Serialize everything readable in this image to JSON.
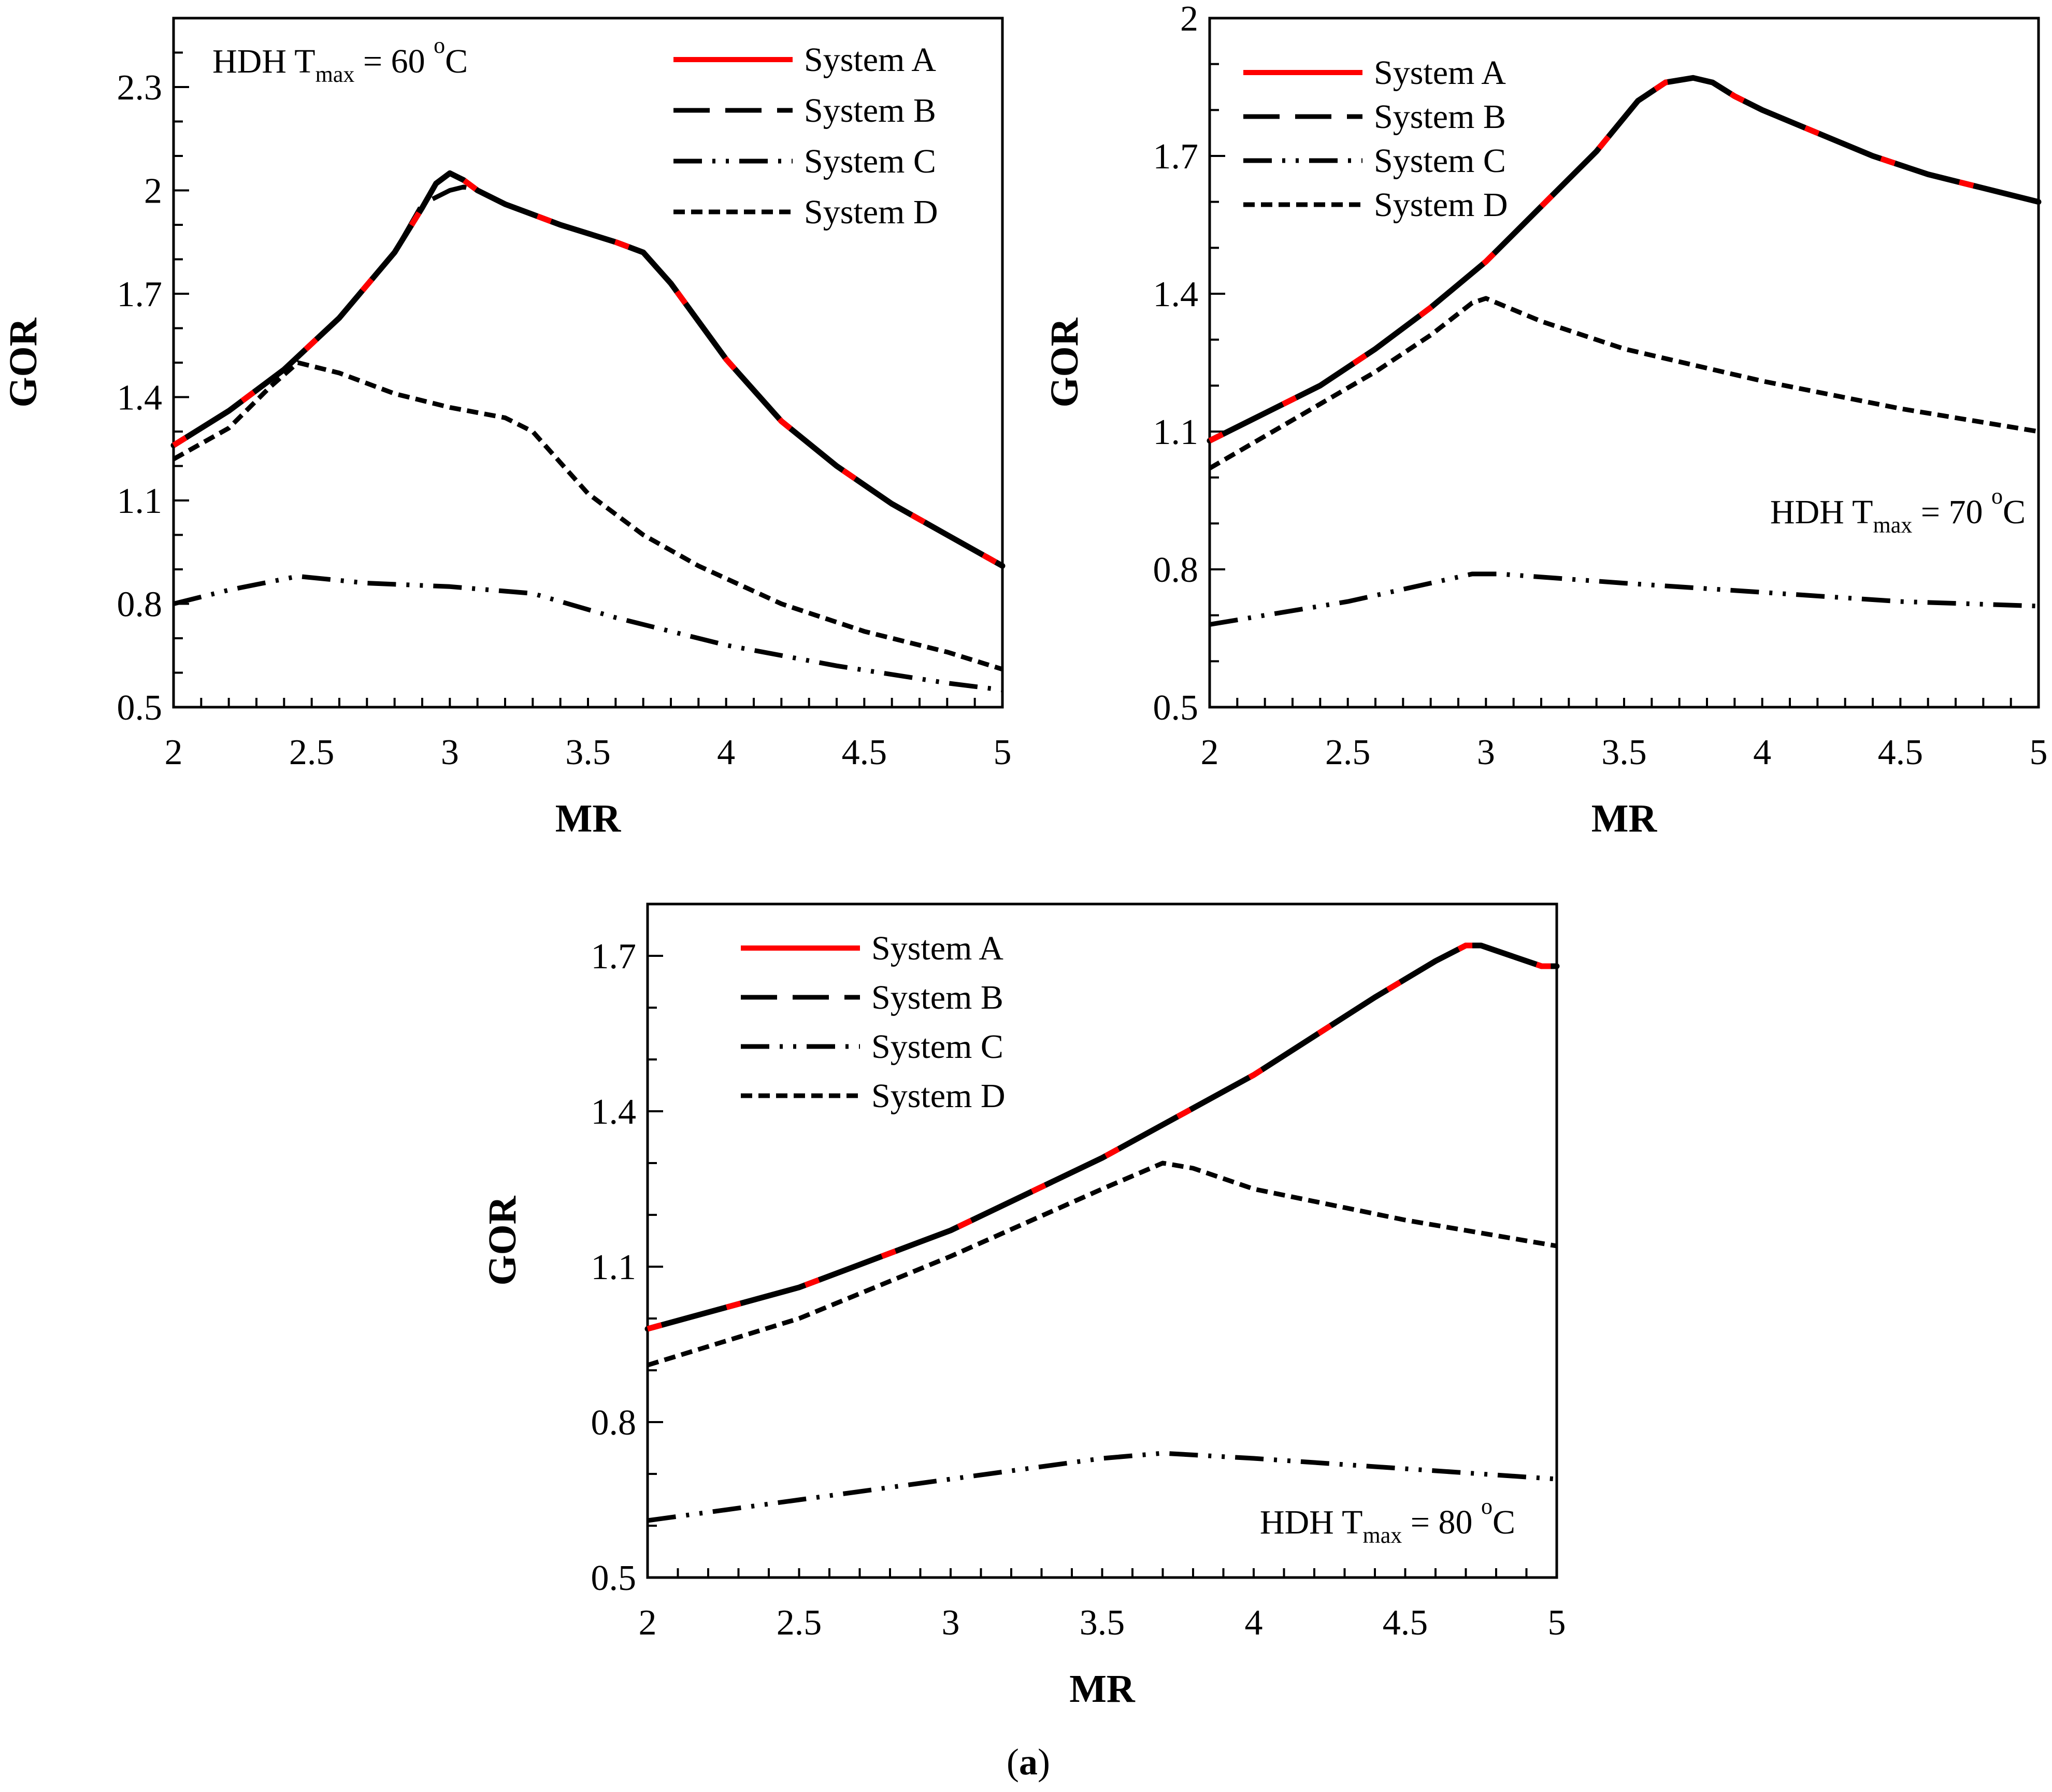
{
  "figure_caption": {
    "open": "(",
    "letter": "a",
    "close": ")"
  },
  "colors": {
    "system_a": "#ff0000",
    "other_series": "#000000",
    "axis": "#000000"
  },
  "chart_data": [
    {
      "type": "line",
      "xlabel": "MR",
      "ylabel": "GOR",
      "xlim": [
        2,
        5
      ],
      "ylim": [
        0.5,
        2.5
      ],
      "xticks": [
        2,
        2.5,
        3,
        3.5,
        4,
        4.5,
        5
      ],
      "xtick_labels": [
        "2",
        "2.5",
        "3",
        "3.5",
        "4",
        "4.5",
        "5"
      ],
      "yticks": [
        0.5,
        0.8,
        1.1,
        1.4,
        1.7,
        2,
        2.3
      ],
      "ytick_labels": [
        "0.5",
        "0.8",
        "1.1",
        "1.4",
        "1.7",
        "2",
        "2.3"
      ],
      "annotation": {
        "pre": "HDH T",
        "sub": "max",
        "mid": " = 60 ",
        "sup": "o",
        "post": "C"
      },
      "annotation_position": "top-left",
      "legend_position": "top-right",
      "series": [
        {
          "name": "System A",
          "style": "solid-red-over-black",
          "x": [
            2,
            2.2,
            2.4,
            2.6,
            2.8,
            2.9,
            2.95,
            3,
            3.05,
            3.1,
            3.2,
            3.4,
            3.6,
            3.7,
            3.8,
            3.9,
            4,
            4.2,
            4.4,
            4.6,
            4.8,
            5
          ],
          "y": [
            1.26,
            1.36,
            1.48,
            1.63,
            1.82,
            1.95,
            2.02,
            2.05,
            2.03,
            2.0,
            1.96,
            1.9,
            1.85,
            1.82,
            1.73,
            1.62,
            1.51,
            1.33,
            1.2,
            1.09,
            1.0,
            0.91
          ]
        },
        {
          "name": "System B",
          "style": "long-dash",
          "x": [
            2,
            2.2,
            2.4,
            2.6,
            2.8,
            2.9,
            3,
            3.05,
            3.1,
            3.2,
            3.4,
            3.6,
            3.7,
            3.8,
            3.9,
            4,
            4.2,
            4.4,
            4.6,
            4.8,
            5
          ],
          "y": [
            1.26,
            1.36,
            1.48,
            1.63,
            1.82,
            1.96,
            2.0,
            2.01,
            2.0,
            1.96,
            1.9,
            1.85,
            1.82,
            1.73,
            1.62,
            1.51,
            1.33,
            1.2,
            1.09,
            1.0,
            0.91
          ]
        },
        {
          "name": "System C",
          "style": "dash-dot-dot",
          "x": [
            2,
            2.2,
            2.45,
            2.7,
            3,
            3.3,
            3.6,
            4,
            4.4,
            4.8,
            5
          ],
          "y": [
            0.8,
            0.84,
            0.88,
            0.86,
            0.85,
            0.83,
            0.76,
            0.68,
            0.62,
            0.57,
            0.55
          ]
        },
        {
          "name": "System D",
          "style": "short-dash",
          "x": [
            2,
            2.2,
            2.35,
            2.45,
            2.6,
            2.8,
            3,
            3.2,
            3.3,
            3.5,
            3.7,
            3.9,
            4.2,
            4.5,
            4.8,
            5
          ],
          "y": [
            1.22,
            1.31,
            1.43,
            1.5,
            1.47,
            1.41,
            1.37,
            1.34,
            1.3,
            1.12,
            1.0,
            0.91,
            0.8,
            0.72,
            0.66,
            0.61
          ]
        }
      ]
    },
    {
      "type": "line",
      "xlabel": "MR",
      "ylabel": "GOR",
      "xlim": [
        2,
        5
      ],
      "ylim": [
        0.5,
        2.0
      ],
      "xticks": [
        2,
        2.5,
        3,
        3.5,
        4,
        4.5,
        5
      ],
      "xtick_labels": [
        "2",
        "2.5",
        "3",
        "3.5",
        "4",
        "4.5",
        "5"
      ],
      "yticks": [
        0.5,
        0.8,
        1.1,
        1.4,
        1.7,
        2
      ],
      "ytick_labels": [
        "0.5",
        "0.8",
        "1.1",
        "1.4",
        "1.7",
        "2"
      ],
      "annotation": {
        "pre": "HDH T",
        "sub": "max",
        "mid": " = 70 ",
        "sup": "o",
        "post": "C"
      },
      "annotation_position": "right-middle",
      "legend_position": "top-left",
      "series": [
        {
          "name": "System A",
          "style": "solid-red-over-black",
          "x": [
            2,
            2.2,
            2.4,
            2.6,
            2.8,
            3,
            3.2,
            3.4,
            3.55,
            3.65,
            3.75,
            3.82,
            3.9,
            4,
            4.2,
            4.4,
            4.6,
            4.8,
            5
          ],
          "y": [
            1.08,
            1.14,
            1.2,
            1.28,
            1.37,
            1.47,
            1.59,
            1.71,
            1.82,
            1.86,
            1.87,
            1.86,
            1.83,
            1.8,
            1.75,
            1.7,
            1.66,
            1.63,
            1.6
          ]
        },
        {
          "name": "System B",
          "style": "long-dash",
          "x": [
            2,
            2.2,
            2.4,
            2.6,
            2.8,
            3,
            3.2,
            3.4,
            3.55,
            3.65,
            3.75,
            3.82,
            3.9,
            4,
            4.2,
            4.4,
            4.6,
            4.8,
            5
          ],
          "y": [
            1.08,
            1.14,
            1.2,
            1.28,
            1.37,
            1.47,
            1.59,
            1.71,
            1.82,
            1.86,
            1.87,
            1.86,
            1.83,
            1.8,
            1.75,
            1.7,
            1.66,
            1.63,
            1.6
          ]
        },
        {
          "name": "System C",
          "style": "dash-dot-dot",
          "x": [
            2,
            2.5,
            2.95,
            3.05,
            3.5,
            4,
            4.5,
            5
          ],
          "y": [
            0.68,
            0.73,
            0.79,
            0.79,
            0.77,
            0.75,
            0.73,
            0.72
          ]
        },
        {
          "name": "System D",
          "style": "short-dash",
          "x": [
            2,
            2.2,
            2.4,
            2.6,
            2.8,
            2.95,
            3,
            3.2,
            3.5,
            4,
            4.5,
            5
          ],
          "y": [
            1.02,
            1.09,
            1.16,
            1.23,
            1.31,
            1.38,
            1.39,
            1.34,
            1.28,
            1.21,
            1.15,
            1.1
          ]
        }
      ]
    },
    {
      "type": "line",
      "xlabel": "MR",
      "ylabel": "GOR",
      "xlim": [
        2,
        5
      ],
      "ylim": [
        0.5,
        1.8
      ],
      "xticks": [
        2,
        2.5,
        3,
        3.5,
        4,
        4.5,
        5
      ],
      "xtick_labels": [
        "2",
        "2.5",
        "3",
        "3.5",
        "4",
        "4.5",
        "5"
      ],
      "yticks": [
        0.5,
        0.8,
        1.1,
        1.4,
        1.7
      ],
      "ytick_labels": [
        "0.5",
        "0.8",
        "1.1",
        "1.4",
        "1.7"
      ],
      "annotation": {
        "pre": "HDH T",
        "sub": "max",
        "mid": " = 80 ",
        "sup": "o",
        "post": "C"
      },
      "annotation_position": "bottom-right",
      "legend_position": "top-left",
      "series": [
        {
          "name": "System A",
          "style": "solid-red-over-black",
          "x": [
            2,
            2.5,
            3,
            3.5,
            4,
            4.4,
            4.6,
            4.7,
            4.75,
            4.8,
            4.85,
            4.95,
            5
          ],
          "y": [
            0.98,
            1.06,
            1.17,
            1.31,
            1.47,
            1.62,
            1.69,
            1.72,
            1.72,
            1.71,
            1.7,
            1.68,
            1.68
          ]
        },
        {
          "name": "System B",
          "style": "long-dash",
          "x": [
            2,
            2.5,
            3,
            3.5,
            4,
            4.4,
            4.6,
            4.7,
            4.75,
            4.8,
            4.85,
            4.95,
            5
          ],
          "y": [
            0.98,
            1.06,
            1.17,
            1.31,
            1.47,
            1.62,
            1.69,
            1.72,
            1.72,
            1.71,
            1.7,
            1.68,
            1.68
          ]
        },
        {
          "name": "System C",
          "style": "dash-dot-dot",
          "x": [
            2,
            2.5,
            3,
            3.5,
            3.7,
            4,
            4.5,
            5
          ],
          "y": [
            0.61,
            0.65,
            0.69,
            0.73,
            0.74,
            0.73,
            0.71,
            0.69
          ]
        },
        {
          "name": "System D",
          "style": "short-dash",
          "x": [
            2,
            2.5,
            3,
            3.5,
            3.7,
            3.8,
            4,
            4.5,
            5
          ],
          "y": [
            0.91,
            1.0,
            1.12,
            1.25,
            1.3,
            1.29,
            1.25,
            1.19,
            1.14
          ]
        }
      ]
    }
  ]
}
